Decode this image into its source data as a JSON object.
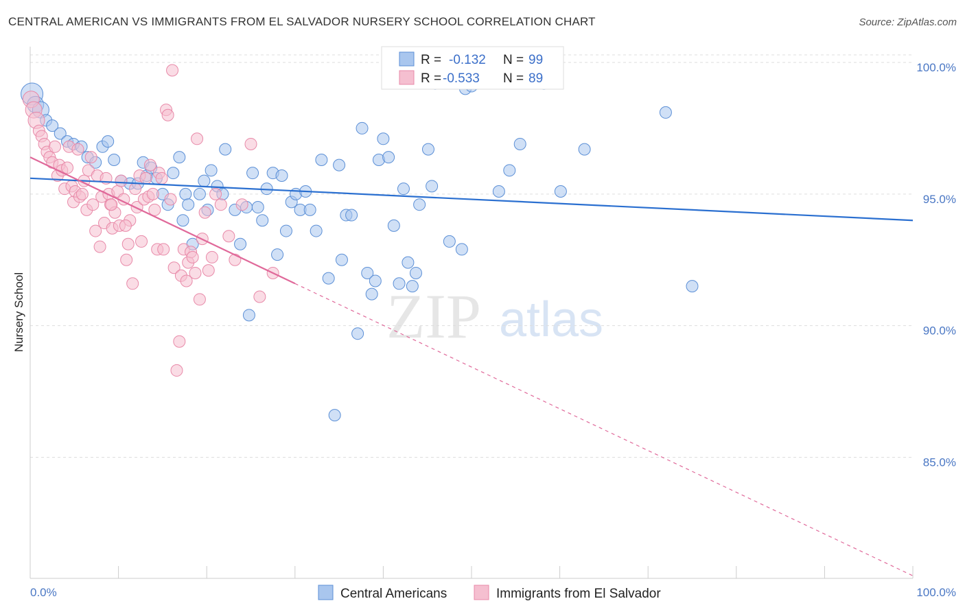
{
  "title": "CENTRAL AMERICAN VS IMMIGRANTS FROM EL SALVADOR NURSERY SCHOOL CORRELATION CHART",
  "source": "Source: ZipAtlas.com",
  "watermark": {
    "zip": "ZIP",
    "atlas": "atlas"
  },
  "colors": {
    "blue_fill": "#a9c6ee",
    "blue_stroke": "#5b8fd6",
    "blue_line": "#2a6fd0",
    "pink_fill": "#f5bfd0",
    "pink_stroke": "#e889a8",
    "pink_line": "#e0699a",
    "tick_text": "#4a77c4",
    "grid": "#dddddd"
  },
  "legend_top": {
    "rows": [
      {
        "r_label": "R =",
        "r_value": "-0.132",
        "n_label": "N =",
        "n_value": "99",
        "color": "blue"
      },
      {
        "r_label": "R =",
        "r_value": "-0.533",
        "n_label": "N =",
        "n_value": "89",
        "color": "pink"
      }
    ]
  },
  "chart_data": {
    "type": "scatter",
    "title": "CENTRAL AMERICAN VS IMMIGRANTS FROM EL SALVADOR NURSERY SCHOOL CORRELATION CHART",
    "xlabel": "",
    "ylabel": "Nursery School",
    "xlim": [
      0,
      100
    ],
    "ylim": [
      80.4,
      100.6
    ],
    "x_tick_labels": [
      "0.0%",
      "100.0%"
    ],
    "y_ticks": [
      {
        "value": 100,
        "label": "100.0%"
      },
      {
        "value": 95,
        "label": "95.0%"
      },
      {
        "value": 90,
        "label": "90.0%"
      },
      {
        "value": 85,
        "label": "85.0%"
      }
    ],
    "grid": true,
    "legend_position": "bottom",
    "series": [
      {
        "name": "Central Americans",
        "color": "blue",
        "trend": {
          "x": [
            0,
            100
          ],
          "y": [
            95.6,
            94.0
          ]
        },
        "points": [
          [
            0.2,
            98.8
          ],
          [
            0.6,
            98.4
          ],
          [
            1.2,
            98.2
          ],
          [
            1.8,
            97.8
          ],
          [
            2.5,
            97.6
          ],
          [
            3.4,
            97.3
          ],
          [
            4.2,
            97.0
          ],
          [
            4.9,
            96.9
          ],
          [
            5.8,
            96.8
          ],
          [
            6.5,
            96.4
          ],
          [
            7.4,
            96.2
          ],
          [
            8.2,
            96.8
          ],
          [
            8.8,
            97.0
          ],
          [
            9.5,
            96.3
          ],
          [
            10.3,
            95.5
          ],
          [
            11.3,
            95.4
          ],
          [
            12.2,
            95.4
          ],
          [
            12.8,
            96.2
          ],
          [
            13.2,
            95.7
          ],
          [
            13.7,
            96.0
          ],
          [
            14.3,
            95.6
          ],
          [
            15.0,
            95.0
          ],
          [
            15.6,
            94.6
          ],
          [
            16.2,
            95.8
          ],
          [
            16.9,
            96.4
          ],
          [
            17.3,
            94.0
          ],
          [
            17.6,
            95.0
          ],
          [
            17.9,
            94.6
          ],
          [
            18.4,
            93.1
          ],
          [
            19.2,
            95.0
          ],
          [
            19.7,
            95.5
          ],
          [
            20.1,
            94.4
          ],
          [
            20.5,
            95.9
          ],
          [
            21.2,
            95.3
          ],
          [
            21.8,
            95.0
          ],
          [
            22.1,
            96.7
          ],
          [
            23.2,
            94.4
          ],
          [
            23.8,
            93.1
          ],
          [
            24.5,
            94.5
          ],
          [
            24.8,
            90.4
          ],
          [
            25.2,
            95.8
          ],
          [
            25.8,
            94.5
          ],
          [
            26.3,
            94.0
          ],
          [
            26.8,
            95.2
          ],
          [
            27.5,
            95.8
          ],
          [
            28.0,
            92.7
          ],
          [
            28.5,
            95.7
          ],
          [
            29.0,
            93.6
          ],
          [
            29.6,
            94.7
          ],
          [
            30.1,
            95.0
          ],
          [
            30.6,
            94.4
          ],
          [
            31.2,
            95.1
          ],
          [
            31.7,
            94.4
          ],
          [
            32.4,
            93.6
          ],
          [
            33.0,
            96.3
          ],
          [
            33.8,
            91.8
          ],
          [
            34.5,
            86.6
          ],
          [
            35.0,
            96.1
          ],
          [
            35.3,
            92.5
          ],
          [
            35.8,
            94.2
          ],
          [
            36.4,
            94.2
          ],
          [
            37.1,
            89.7
          ],
          [
            37.6,
            97.5
          ],
          [
            38.2,
            92.0
          ],
          [
            38.7,
            91.2
          ],
          [
            39.1,
            91.7
          ],
          [
            39.5,
            96.3
          ],
          [
            40.0,
            97.1
          ],
          [
            40.6,
            96.4
          ],
          [
            41.2,
            93.8
          ],
          [
            41.8,
            91.6
          ],
          [
            42.3,
            95.2
          ],
          [
            42.8,
            92.4
          ],
          [
            43.3,
            91.5
          ],
          [
            43.7,
            92.0
          ],
          [
            44.1,
            94.6
          ],
          [
            45.1,
            96.7
          ],
          [
            45.5,
            95.3
          ],
          [
            45.9,
            99.2
          ],
          [
            47.5,
            93.2
          ],
          [
            48.9,
            92.9
          ],
          [
            49.3,
            99.0
          ],
          [
            50.0,
            99.1
          ],
          [
            50.5,
            99.2
          ],
          [
            50.8,
            99.3
          ],
          [
            51.0,
            99.4
          ],
          [
            51.2,
            99.5
          ],
          [
            51.5,
            99.4
          ],
          [
            51.8,
            99.3
          ],
          [
            52.2,
            99.6
          ],
          [
            52.5,
            100.0
          ],
          [
            53.1,
            95.1
          ],
          [
            54.3,
            95.9
          ],
          [
            55.5,
            96.9
          ],
          [
            58.2,
            99.2
          ],
          [
            60.1,
            95.1
          ],
          [
            62.8,
            96.7
          ],
          [
            72.0,
            98.1
          ],
          [
            75.0,
            91.5
          ]
        ]
      },
      {
        "name": "Immigrants from El Salvador",
        "color": "pink",
        "trend": {
          "x": [
            0,
            30
          ],
          "y": [
            96.4,
            91.6
          ],
          "dashed_to": {
            "x": 100,
            "y": 80.5
          }
        },
        "points": [
          [
            0.1,
            98.6
          ],
          [
            0.4,
            98.2
          ],
          [
            0.7,
            97.8
          ],
          [
            1.0,
            97.4
          ],
          [
            1.3,
            97.2
          ],
          [
            1.6,
            96.9
          ],
          [
            1.9,
            96.6
          ],
          [
            2.2,
            96.4
          ],
          [
            2.5,
            96.2
          ],
          [
            2.8,
            96.8
          ],
          [
            3.1,
            95.7
          ],
          [
            3.3,
            96.1
          ],
          [
            3.6,
            95.9
          ],
          [
            3.9,
            95.2
          ],
          [
            4.2,
            96.0
          ],
          [
            4.4,
            96.8
          ],
          [
            4.7,
            95.3
          ],
          [
            4.9,
            94.7
          ],
          [
            5.1,
            95.1
          ],
          [
            5.4,
            96.7
          ],
          [
            5.6,
            94.9
          ],
          [
            5.9,
            95.0
          ],
          [
            6.1,
            95.5
          ],
          [
            6.4,
            94.4
          ],
          [
            6.6,
            95.9
          ],
          [
            6.9,
            96.4
          ],
          [
            7.1,
            94.6
          ],
          [
            7.4,
            93.6
          ],
          [
            7.6,
            95.7
          ],
          [
            7.9,
            93.0
          ],
          [
            8.1,
            94.9
          ],
          [
            8.4,
            93.9
          ],
          [
            8.6,
            95.6
          ],
          [
            8.9,
            95.0
          ],
          [
            9.1,
            94.6
          ],
          [
            9.3,
            93.7
          ],
          [
            9.6,
            94.3
          ],
          [
            9.9,
            95.1
          ],
          [
            10.1,
            93.8
          ],
          [
            10.3,
            95.5
          ],
          [
            10.6,
            94.8
          ],
          [
            10.9,
            92.5
          ],
          [
            11.1,
            93.1
          ],
          [
            11.3,
            94.0
          ],
          [
            11.6,
            91.6
          ],
          [
            11.9,
            95.2
          ],
          [
            12.1,
            94.5
          ],
          [
            12.4,
            95.7
          ],
          [
            12.6,
            93.2
          ],
          [
            12.9,
            94.8
          ],
          [
            13.1,
            95.6
          ],
          [
            13.4,
            94.9
          ],
          [
            13.6,
            96.1
          ],
          [
            13.9,
            95.0
          ],
          [
            14.1,
            94.4
          ],
          [
            14.4,
            92.9
          ],
          [
            14.6,
            95.8
          ],
          [
            14.9,
            95.6
          ],
          [
            15.1,
            92.9
          ],
          [
            15.4,
            98.2
          ],
          [
            15.6,
            98.0
          ],
          [
            15.9,
            94.8
          ],
          [
            16.1,
            99.7
          ],
          [
            16.3,
            92.2
          ],
          [
            16.6,
            88.3
          ],
          [
            16.9,
            89.4
          ],
          [
            17.1,
            91.9
          ],
          [
            17.4,
            92.9
          ],
          [
            17.7,
            91.7
          ],
          [
            17.9,
            92.4
          ],
          [
            18.2,
            92.8
          ],
          [
            18.4,
            92.6
          ],
          [
            18.7,
            92.0
          ],
          [
            18.9,
            97.1
          ],
          [
            19.2,
            91.0
          ],
          [
            19.5,
            93.3
          ],
          [
            19.8,
            94.3
          ],
          [
            20.2,
            92.1
          ],
          [
            20.6,
            92.6
          ],
          [
            21.0,
            95.0
          ],
          [
            21.6,
            94.6
          ],
          [
            22.5,
            93.4
          ],
          [
            23.2,
            92.5
          ],
          [
            24.0,
            94.6
          ],
          [
            25.0,
            96.9
          ],
          [
            26.0,
            91.1
          ],
          [
            27.5,
            92.0
          ],
          [
            9.2,
            94.6
          ],
          [
            10.8,
            93.8
          ]
        ]
      }
    ]
  },
  "legend_bottom": [
    {
      "label": "Central Americans",
      "color": "blue"
    },
    {
      "label": "Immigrants from El Salvador",
      "color": "pink"
    }
  ]
}
